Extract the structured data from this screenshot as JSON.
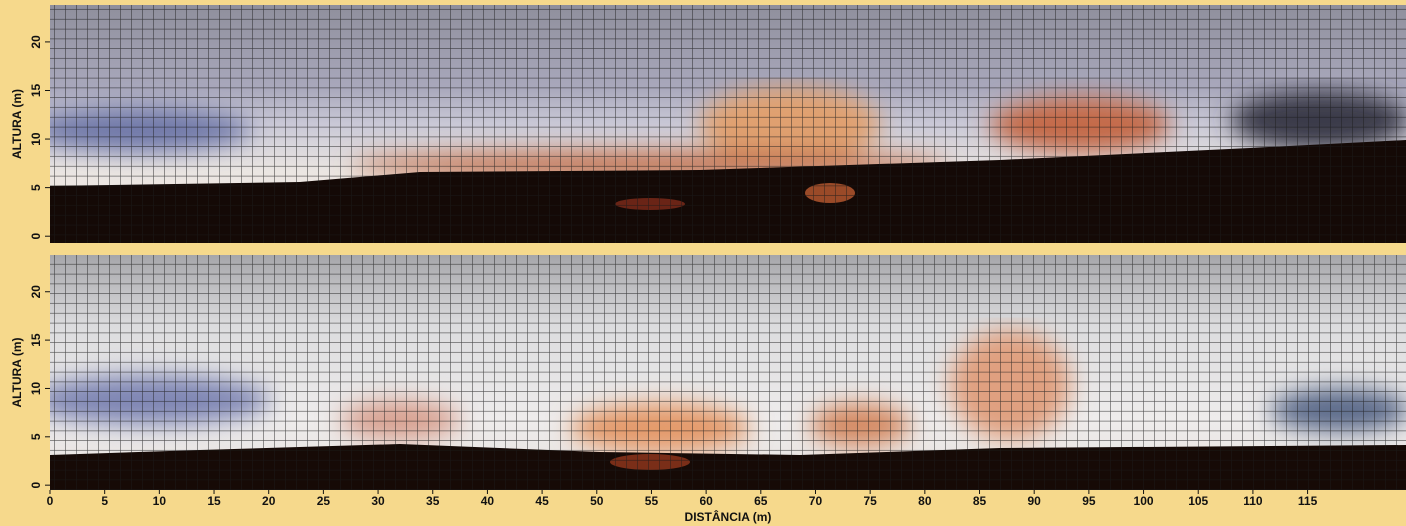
{
  "chart_data": [
    {
      "type": "image",
      "ylabel": "ALTURA (m)",
      "ylim": [
        -0.7,
        23.8
      ],
      "yticks": [
        0,
        5,
        10,
        15,
        20
      ]
    },
    {
      "type": "image",
      "ylabel": "ALTURA (m)",
      "xlabel": "DISTÂNCIA (m)",
      "ylim": [
        -0.5,
        23.8
      ],
      "yticks": [
        0,
        5,
        10,
        15,
        20
      ],
      "xlim": [
        0,
        124
      ],
      "xticks": [
        0,
        5,
        10,
        15,
        20,
        25,
        30,
        35,
        40,
        45,
        50,
        55,
        60,
        65,
        70,
        75,
        80,
        85,
        90,
        95,
        100,
        105,
        110,
        115
      ]
    }
  ]
}
